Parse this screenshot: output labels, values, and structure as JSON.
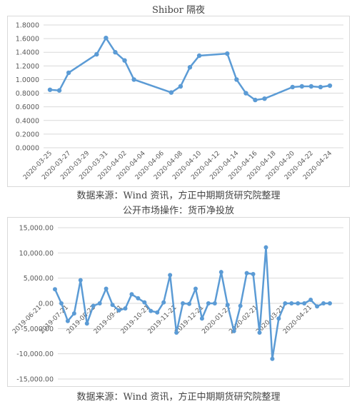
{
  "chart_data": [
    {
      "type": "line",
      "title": "Shibor 隔夜",
      "source": "数据来源：Wind 资讯，方正中期期货研究院整理",
      "y_ticks": [
        "1.8000",
        "1.6000",
        "1.4000",
        "1.2000",
        "1.0000",
        "0.8000",
        "0.6000",
        "0.4000",
        "0.2000",
        "0.0000"
      ],
      "ylim": [
        0,
        1.8
      ],
      "x_tick_labels": [
        "2020-03-25",
        "2020-03-27",
        "2020-03-29",
        "2020-03-31",
        "2020-04-02",
        "2020-04-04",
        "2020-04-06",
        "2020-04-08",
        "2020-04-10",
        "2020-04-12",
        "2020-04-14",
        "2020-04-16",
        "2020-04-18",
        "2020-04-20",
        "2020-04-22",
        "2020-04-24"
      ],
      "x": [
        "2020-03-25",
        "2020-03-26",
        "2020-03-27",
        "2020-03-30",
        "2020-03-31",
        "2020-04-01",
        "2020-04-02",
        "2020-04-03",
        "2020-04-07",
        "2020-04-08",
        "2020-04-09",
        "2020-04-10",
        "2020-04-13",
        "2020-04-14",
        "2020-04-15",
        "2020-04-16",
        "2020-04-17",
        "2020-04-20",
        "2020-04-21",
        "2020-04-22",
        "2020-04-23",
        "2020-04-24"
      ],
      "values": [
        0.85,
        0.84,
        1.1,
        1.37,
        1.61,
        1.4,
        1.28,
        1.0,
        0.81,
        0.9,
        1.18,
        1.35,
        1.38,
        1.0,
        0.8,
        0.7,
        0.72,
        0.89,
        0.9,
        0.9,
        0.89,
        0.91
      ],
      "grid": true,
      "color": "#5b9bd5"
    },
    {
      "type": "line",
      "title": "公开市场操作：货币净投放",
      "source": "数据来源：Wind 资讯，方正中期期货研究院整理",
      "y_ticks": [
        "15,000.00",
        "10,000.00",
        "5,000.00",
        "0.00",
        "-5,000.00",
        "-10,000.00",
        "-15,000.00"
      ],
      "ylim": [
        -15000,
        15000
      ],
      "x_tick_labels": [
        "2019-06-21",
        "2019-07-21",
        "2019-08-21",
        "2019-09-21",
        "2019-10-21",
        "2019-11-21",
        "2019-12-21",
        "2020-01-21",
        "2020-02-21",
        "2020-03-21",
        "2020-04-21"
      ],
      "values": [
        2800,
        0,
        -3500,
        -2000,
        4600,
        -4000,
        -500,
        0,
        2900,
        -300,
        -1400,
        -1000,
        1800,
        1000,
        200,
        -1500,
        -1800,
        200,
        5600,
        -5800,
        0,
        -100,
        2900,
        -3000,
        0,
        0,
        6200,
        -300,
        -5500,
        -500,
        6000,
        5800,
        -5800,
        11100,
        -11000,
        -3000,
        0,
        0,
        0,
        0,
        700,
        -600,
        0,
        0
      ],
      "grid": true,
      "color": "#5b9bd5"
    }
  ]
}
